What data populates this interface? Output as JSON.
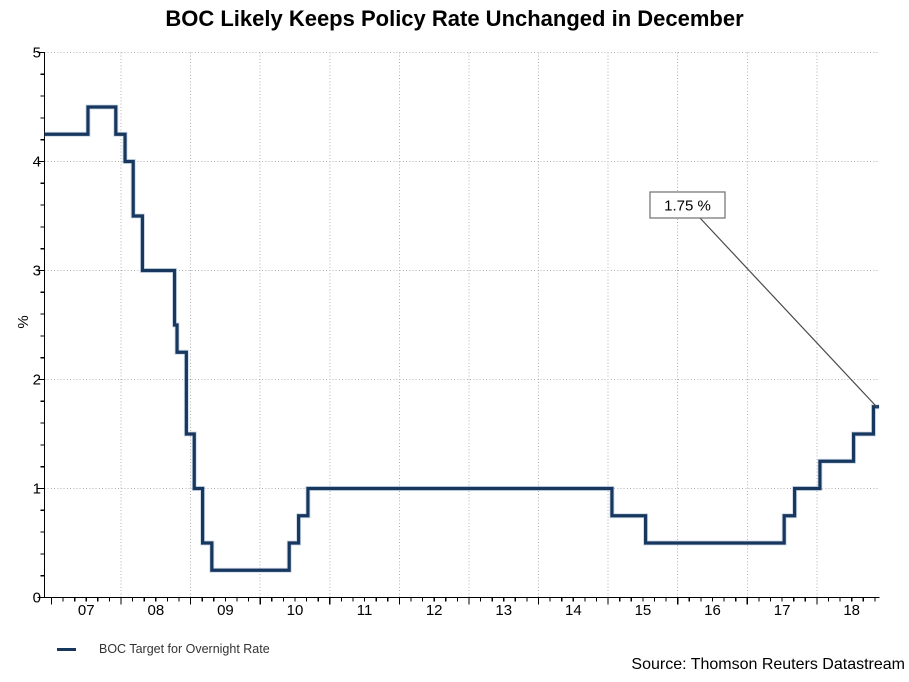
{
  "header": {
    "title": "BOC Likely Keeps Policy Rate Unchanged in December"
  },
  "footer": {
    "source": "Source: Thomson Reuters Datastream"
  },
  "chart_data": {
    "type": "line",
    "step": true,
    "title": "BOC Likely Keeps Policy Rate Unchanged in December",
    "xlabel": "",
    "ylabel": "%",
    "x_domain_years": [
      2006.9,
      2018.9
    ],
    "ylim": [
      0,
      5
    ],
    "y_ticks": [
      "0",
      "1",
      "2",
      "3",
      "4",
      "5"
    ],
    "y_minor_step": 0.2,
    "x_major_tick_years": [
      2007,
      2008,
      2009,
      2010,
      2011,
      2012,
      2013,
      2014,
      2015,
      2016,
      2017,
      2018
    ],
    "x_tick_labels": [
      "07",
      "08",
      "09",
      "10",
      "11",
      "12",
      "13",
      "14",
      "15",
      "16",
      "17",
      "18"
    ],
    "x_minor_step_years": 0.16667,
    "grid": {
      "h_values": [
        1,
        2,
        3,
        4,
        5
      ],
      "v_years": [
        2008,
        2009,
        2010,
        2011,
        2012,
        2013,
        2014,
        2015,
        2016,
        2017,
        2018
      ],
      "color": "#b0b0b0",
      "style": "dotted"
    },
    "legend_position": "bottom-left",
    "series": [
      {
        "name": "BOC Target for Overnight Rate",
        "color": "#17375e",
        "halo_color": "#a9bfd8",
        "start_value": 4.25,
        "changes": [
          [
            "2007-07-10",
            4.5
          ],
          [
            "2007-12-04",
            4.25
          ],
          [
            "2008-01-22",
            4.0
          ],
          [
            "2008-03-04",
            3.5
          ],
          [
            "2008-04-22",
            3.0
          ],
          [
            "2008-10-08",
            2.5
          ],
          [
            "2008-10-21",
            2.25
          ],
          [
            "2008-12-09",
            1.5
          ],
          [
            "2009-01-20",
            1.0
          ],
          [
            "2009-03-03",
            0.5
          ],
          [
            "2009-04-21",
            0.25
          ],
          [
            "2010-06-01",
            0.5
          ],
          [
            "2010-07-20",
            0.75
          ],
          [
            "2010-09-08",
            1.0
          ],
          [
            "2015-01-21",
            0.75
          ],
          [
            "2015-07-15",
            0.5
          ],
          [
            "2017-07-12",
            0.75
          ],
          [
            "2017-09-06",
            1.0
          ],
          [
            "2018-01-17",
            1.25
          ],
          [
            "2018-07-11",
            1.5
          ],
          [
            "2018-10-24",
            1.75
          ]
        ],
        "end_date": "2018-11-23",
        "end_value": 1.75
      }
    ],
    "annotation": {
      "label": "1.75 %",
      "points_to_value": 1.75
    }
  },
  "colors": {
    "axis": "#000000",
    "grid": "#b0b0b0",
    "annotation_border": "#787878",
    "annotation_leader": "#4a4a4a",
    "tick_label": "#000000"
  }
}
